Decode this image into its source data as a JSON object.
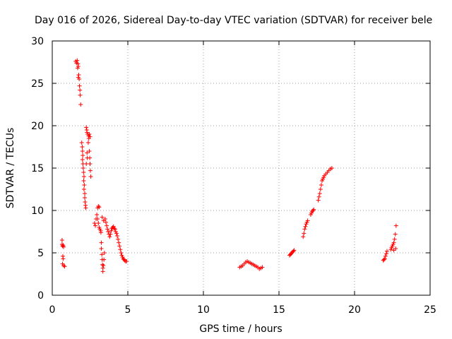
{
  "chart_data": {
    "type": "scatter",
    "title": "Day 016 of 2026, Sidereal Day-to-day VTEC variation (SDTVAR) for receiver bele",
    "xlabel": "GPS time / hours",
    "ylabel": "SDTVAR / TECUs",
    "xlim": [
      0,
      25
    ],
    "ylim": [
      0,
      30
    ],
    "xticks": [
      0,
      5,
      10,
      15,
      20,
      25
    ],
    "yticks": [
      0,
      5,
      10,
      15,
      20,
      25,
      30
    ],
    "grid": true,
    "marker": "+",
    "series": [
      {
        "name": "SDTVAR",
        "color": "#ff0000",
        "points": [
          [
            0.65,
            6.5
          ],
          [
            0.65,
            6.0
          ],
          [
            0.68,
            5.8
          ],
          [
            0.72,
            5.9
          ],
          [
            0.75,
            5.7
          ],
          [
            0.7,
            4.6
          ],
          [
            0.72,
            4.3
          ],
          [
            0.68,
            3.7
          ],
          [
            0.75,
            3.5
          ],
          [
            0.82,
            3.4
          ],
          [
            1.55,
            27.6
          ],
          [
            1.6,
            27.4
          ],
          [
            1.65,
            27.7
          ],
          [
            1.7,
            27.3
          ],
          [
            1.72,
            27.0
          ],
          [
            1.68,
            26.8
          ],
          [
            1.75,
            26.0
          ],
          [
            1.72,
            25.7
          ],
          [
            1.78,
            25.5
          ],
          [
            1.8,
            24.7
          ],
          [
            1.83,
            24.2
          ],
          [
            1.85,
            23.6
          ],
          [
            1.88,
            22.5
          ],
          [
            1.95,
            18.0
          ],
          [
            1.98,
            17.5
          ],
          [
            2.0,
            17.0
          ],
          [
            2.02,
            16.5
          ],
          [
            2.0,
            16.0
          ],
          [
            2.03,
            15.5
          ],
          [
            2.05,
            15.0
          ],
          [
            2.07,
            14.5
          ],
          [
            2.1,
            14.0
          ],
          [
            2.08,
            13.5
          ],
          [
            2.12,
            13.0
          ],
          [
            2.1,
            12.5
          ],
          [
            2.15,
            12.0
          ],
          [
            2.15,
            11.5
          ],
          [
            2.17,
            11.0
          ],
          [
            2.2,
            10.6
          ],
          [
            2.22,
            10.3
          ],
          [
            2.25,
            19.8
          ],
          [
            2.28,
            19.5
          ],
          [
            2.3,
            19.2
          ],
          [
            2.35,
            19.0
          ],
          [
            2.4,
            18.8
          ],
          [
            2.42,
            18.5
          ],
          [
            2.45,
            19.0
          ],
          [
            2.5,
            18.7
          ],
          [
            2.38,
            18.0
          ],
          [
            2.45,
            17.0
          ],
          [
            2.48,
            16.2
          ],
          [
            2.5,
            15.5
          ],
          [
            2.52,
            14.7
          ],
          [
            2.55,
            14.0
          ],
          [
            2.3,
            16.8
          ],
          [
            2.32,
            16.2
          ],
          [
            2.25,
            15.5
          ],
          [
            2.8,
            8.5
          ],
          [
            2.85,
            8.2
          ],
          [
            2.9,
            9.0
          ],
          [
            2.95,
            9.5
          ],
          [
            3.0,
            10.3
          ],
          [
            3.05,
            10.5
          ],
          [
            3.1,
            10.4
          ],
          [
            3.0,
            9.0
          ],
          [
            3.05,
            8.5
          ],
          [
            3.1,
            8.0
          ],
          [
            3.15,
            7.8
          ],
          [
            3.2,
            7.6
          ],
          [
            3.22,
            7.4
          ],
          [
            3.25,
            6.2
          ],
          [
            3.25,
            5.5
          ],
          [
            3.28,
            4.8
          ],
          [
            3.3,
            4.2
          ],
          [
            3.32,
            3.6
          ],
          [
            3.35,
            3.2
          ],
          [
            3.35,
            2.8
          ],
          [
            3.38,
            3.5
          ],
          [
            3.42,
            4.2
          ],
          [
            3.45,
            5.0
          ],
          [
            3.3,
            9.2
          ],
          [
            3.4,
            8.8
          ],
          [
            3.5,
            9.0
          ],
          [
            3.55,
            8.6
          ],
          [
            3.6,
            8.2
          ],
          [
            3.65,
            7.8
          ],
          [
            3.7,
            7.5
          ],
          [
            3.75,
            7.2
          ],
          [
            3.8,
            6.9
          ],
          [
            3.85,
            7.2
          ],
          [
            3.9,
            7.6
          ],
          [
            3.95,
            7.9
          ],
          [
            4.0,
            8.0
          ],
          [
            4.05,
            8.1
          ],
          [
            4.1,
            7.9
          ],
          [
            4.15,
            7.8
          ],
          [
            4.2,
            7.5
          ],
          [
            4.25,
            7.3
          ],
          [
            4.3,
            7.0
          ],
          [
            4.35,
            6.6
          ],
          [
            4.4,
            6.2
          ],
          [
            4.45,
            5.8
          ],
          [
            4.5,
            5.4
          ],
          [
            4.55,
            5.0
          ],
          [
            4.6,
            4.7
          ],
          [
            4.65,
            4.5
          ],
          [
            4.7,
            4.3
          ],
          [
            4.75,
            4.2
          ],
          [
            4.8,
            4.1
          ],
          [
            4.85,
            4.0
          ],
          [
            4.92,
            4.0
          ],
          [
            12.4,
            3.3
          ],
          [
            12.5,
            3.4
          ],
          [
            12.6,
            3.5
          ],
          [
            12.7,
            3.7
          ],
          [
            12.8,
            3.9
          ],
          [
            12.9,
            4.0
          ],
          [
            13.0,
            3.9
          ],
          [
            13.1,
            3.8
          ],
          [
            13.2,
            3.7
          ],
          [
            13.3,
            3.6
          ],
          [
            13.4,
            3.5
          ],
          [
            13.5,
            3.4
          ],
          [
            13.6,
            3.3
          ],
          [
            13.7,
            3.1
          ],
          [
            13.8,
            3.2
          ],
          [
            13.9,
            3.3
          ],
          [
            15.7,
            4.7
          ],
          [
            15.75,
            4.8
          ],
          [
            15.8,
            4.9
          ],
          [
            15.85,
            5.0
          ],
          [
            15.9,
            5.1
          ],
          [
            15.95,
            5.2
          ],
          [
            16.0,
            5.3
          ],
          [
            16.6,
            6.9
          ],
          [
            16.65,
            7.3
          ],
          [
            16.7,
            7.8
          ],
          [
            16.75,
            8.1
          ],
          [
            16.8,
            8.4
          ],
          [
            16.85,
            8.6
          ],
          [
            16.9,
            8.8
          ],
          [
            17.1,
            9.5
          ],
          [
            17.15,
            9.7
          ],
          [
            17.2,
            9.9
          ],
          [
            17.25,
            10.0
          ],
          [
            17.3,
            10.1
          ],
          [
            17.6,
            11.2
          ],
          [
            17.65,
            11.6
          ],
          [
            17.7,
            12.0
          ],
          [
            17.75,
            12.5
          ],
          [
            17.8,
            13.0
          ],
          [
            17.85,
            13.5
          ],
          [
            17.9,
            13.7
          ],
          [
            17.95,
            13.9
          ],
          [
            18.0,
            14.1
          ],
          [
            18.1,
            14.3
          ],
          [
            18.2,
            14.5
          ],
          [
            18.3,
            14.7
          ],
          [
            18.4,
            14.9
          ],
          [
            18.5,
            15.0
          ],
          [
            21.9,
            4.1
          ],
          [
            21.95,
            4.2
          ],
          [
            22.0,
            4.3
          ],
          [
            22.05,
            4.6
          ],
          [
            22.1,
            4.9
          ],
          [
            22.15,
            5.2
          ],
          [
            22.4,
            5.4
          ],
          [
            22.45,
            5.6
          ],
          [
            22.5,
            5.8
          ],
          [
            22.55,
            6.0
          ],
          [
            22.6,
            6.2
          ],
          [
            22.65,
            6.6
          ],
          [
            22.7,
            7.2
          ],
          [
            22.75,
            8.2
          ],
          [
            22.72,
            5.5
          ],
          [
            22.6,
            5.3
          ]
        ]
      }
    ]
  }
}
